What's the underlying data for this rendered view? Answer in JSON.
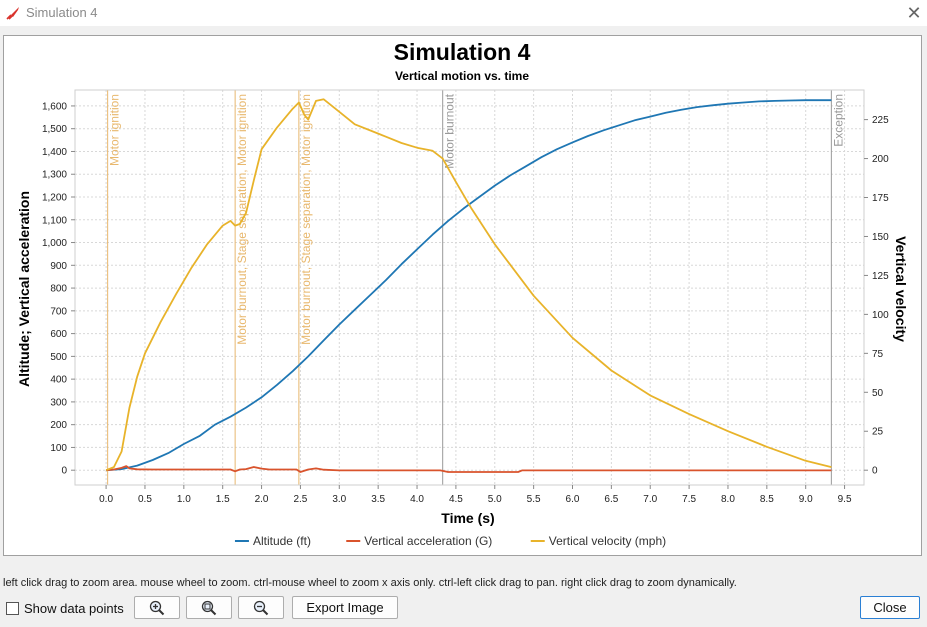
{
  "window": {
    "title": "Simulation 4",
    "close_glyph": "✕",
    "app_icon": "rocket-icon"
  },
  "footer": {
    "hint": "left click drag to zoom area. mouse wheel to zoom. ctrl-mouse wheel to zoom x axis only. ctrl-left click drag to pan.  right click drag to zoom dynamically.",
    "show_points_label": "Show data points",
    "zoom_in_icon": "zoom-in-icon",
    "zoom_reset_icon": "zoom-reset-icon",
    "zoom_out_icon": "zoom-out-icon",
    "export_label": "Export Image",
    "close_label": "Close"
  },
  "chart_data": {
    "type": "line",
    "title": "Simulation 4",
    "subtitle": "Vertical motion vs. time",
    "xlabel": "Time (s)",
    "ylabel_left": "Altitude; Vertical acceleration",
    "ylabel_right": "Vertical velocity",
    "xlim": [
      -0.4,
      9.75
    ],
    "ylim_left": [
      -65,
      1670
    ],
    "ylim_right": [
      -9.5,
      244
    ],
    "x_ticks": [
      "0.0",
      "0.5",
      "1.0",
      "1.5",
      "2.0",
      "2.5",
      "3.0",
      "3.5",
      "4.0",
      "4.5",
      "5.0",
      "5.5",
      "6.0",
      "6.5",
      "7.0",
      "7.5",
      "8.0",
      "8.5",
      "9.0",
      "9.5"
    ],
    "y_left_ticks": [
      "0",
      "100",
      "200",
      "300",
      "400",
      "500",
      "600",
      "700",
      "800",
      "900",
      "1,000",
      "1,100",
      "1,200",
      "1,300",
      "1,400",
      "1,500",
      "1,600"
    ],
    "y_right_ticks": [
      "0",
      "25",
      "50",
      "75",
      "100",
      "125",
      "150",
      "175",
      "200",
      "225"
    ],
    "grid": true,
    "legend_position": "bottom",
    "events": [
      {
        "t": 0.02,
        "label": "Motor ignition",
        "color": "#e8b86e"
      },
      {
        "t": 1.66,
        "label": "Motor burnout, Stage separation, Motor ignition",
        "color": "#e8b86e"
      },
      {
        "t": 2.48,
        "label": "Motor burnout, Stage separation, Motor ignition",
        "color": "#e8b86e"
      },
      {
        "t": 4.33,
        "label": "Motor burnout",
        "color": "#999999"
      },
      {
        "t": 9.33,
        "label": "Exception",
        "color": "#999999"
      }
    ],
    "series": [
      {
        "name": "Altitude (ft)",
        "axis": "left",
        "color": "#1f77b4",
        "x": [
          0.0,
          0.2,
          0.4,
          0.6,
          0.8,
          1.0,
          1.2,
          1.4,
          1.6,
          1.8,
          2.0,
          2.2,
          2.4,
          2.6,
          2.8,
          3.0,
          3.2,
          3.4,
          3.6,
          3.8,
          4.0,
          4.2,
          4.4,
          4.6,
          4.8,
          5.0,
          5.2,
          5.4,
          5.6,
          5.8,
          6.0,
          6.2,
          6.4,
          6.6,
          6.8,
          7.0,
          7.2,
          7.4,
          7.6,
          7.8,
          8.0,
          8.2,
          8.4,
          8.6,
          8.8,
          9.0,
          9.2,
          9.33
        ],
        "y": [
          0,
          5,
          20,
          45,
          75,
          115,
          150,
          200,
          235,
          275,
          320,
          375,
          435,
          500,
          570,
          640,
          705,
          770,
          835,
          905,
          970,
          1035,
          1095,
          1150,
          1200,
          1250,
          1295,
          1335,
          1375,
          1410,
          1440,
          1468,
          1493,
          1515,
          1537,
          1553,
          1570,
          1583,
          1595,
          1603,
          1610,
          1615,
          1620,
          1622,
          1624,
          1625,
          1625,
          1625
        ]
      },
      {
        "name": "Vertical acceleration (G)",
        "axis": "left",
        "color": "#d9532c",
        "x": [
          0.0,
          0.1,
          0.2,
          0.26,
          0.3,
          0.4,
          0.6,
          1.0,
          1.4,
          1.6,
          1.66,
          1.72,
          1.8,
          1.9,
          2.0,
          2.1,
          2.3,
          2.45,
          2.5,
          2.6,
          2.7,
          2.8,
          3.0,
          4.0,
          4.3,
          4.4,
          5.0,
          5.3,
          5.35,
          6.0,
          7.0,
          8.0,
          9.0,
          9.33
        ],
        "y": [
          0,
          3,
          10,
          18,
          8,
          4,
          3,
          3,
          3,
          3,
          -5,
          3,
          5,
          14,
          7,
          3,
          3,
          3,
          -8,
          3,
          8,
          2,
          -1,
          -1,
          -1,
          -8,
          -8,
          -8,
          -1,
          -1,
          -1,
          -1,
          -1,
          -1
        ]
      },
      {
        "name": "Vertical velocity (mph)",
        "axis": "right",
        "color": "#e8b32a",
        "x": [
          0.0,
          0.1,
          0.2,
          0.3,
          0.4,
          0.5,
          0.7,
          0.9,
          1.1,
          1.3,
          1.5,
          1.6,
          1.66,
          1.72,
          1.8,
          1.9,
          2.0,
          2.2,
          2.4,
          2.48,
          2.55,
          2.6,
          2.7,
          2.8,
          3.0,
          3.2,
          3.4,
          3.6,
          3.8,
          4.0,
          4.2,
          4.33,
          4.5,
          4.7,
          5.0,
          5.5,
          6.0,
          6.5,
          7.0,
          7.5,
          8.0,
          8.5,
          9.0,
          9.33
        ],
        "y": [
          0,
          2,
          12,
          40,
          60,
          75,
          95,
          113,
          130,
          145,
          157,
          160,
          157,
          158,
          165,
          186,
          206,
          220,
          232,
          236,
          228,
          225,
          237,
          238,
          230,
          222,
          218,
          214,
          210,
          207,
          205,
          200,
          185,
          168,
          145,
          112,
          85,
          64,
          48,
          36,
          25,
          15,
          6,
          2
        ]
      }
    ]
  }
}
